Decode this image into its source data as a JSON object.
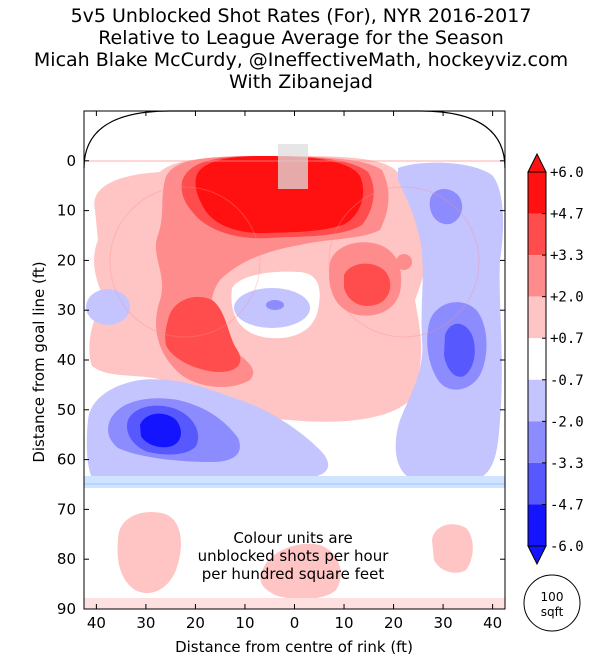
{
  "chart_data": {
    "type": "heatmap",
    "title_lines": [
      "5v5 Unblocked Shot Rates (For), NYR 2016-2017",
      "Relative to League Average for the Season",
      "Micah Blake McCurdy, @IneffectiveMath, hockeyviz.com",
      "With Zibanejad"
    ],
    "xlabel": "Distance from centre of rink (ft)",
    "ylabel": "Distance from goal line (ft)",
    "x_ticks": [
      "40",
      "30",
      "20",
      "10",
      "0",
      "10",
      "20",
      "30",
      "40"
    ],
    "y_ticks": [
      "0",
      "10",
      "20",
      "30",
      "40",
      "50",
      "60",
      "70",
      "80",
      "90"
    ],
    "xlim": [
      -42.5,
      42.5
    ],
    "ylim": [
      90,
      -10
    ],
    "colorbar": {
      "labels": [
        "+6.0",
        "+4.7",
        "+3.3",
        "+2.0",
        "+0.7",
        "-0.7",
        "-2.0",
        "-3.3",
        "-4.7",
        "-6.0"
      ],
      "colors": [
        "#ff1111",
        "#ff4c4c",
        "#ff8c8c",
        "#ffc4c4",
        "#ffffff",
        "#c4c4ff",
        "#8c8cff",
        "#5858ff",
        "#1414ff"
      ]
    },
    "annotation_lines": [
      "Colour units are",
      "unblocked shots per hour",
      "per hundred square feet"
    ],
    "scale_circle_lines": [
      "100",
      "sqft"
    ],
    "regions": [
      {
        "level": 1,
        "x": [
          -35,
          35
        ],
        "y": [
          -2,
          63
        ],
        "shape": "pink-background"
      },
      {
        "level": -2,
        "x": [
          -42,
          -5
        ],
        "y": [
          45,
          63
        ],
        "shape": "blue-bottom-left"
      },
      {
        "level": -4,
        "x": [
          -34,
          -18
        ],
        "y": [
          49,
          59
        ],
        "shape": "deep-blue"
      },
      {
        "level": -2,
        "x": [
          22,
          42
        ],
        "y": [
          0,
          63
        ],
        "shape": "blue-right"
      },
      {
        "level": -3,
        "x": [
          26,
          40
        ],
        "y": [
          29,
          44
        ],
        "shape": "blue-right-mid"
      },
      {
        "level": 5,
        "x": [
          -22,
          22
        ],
        "y": [
          0,
          18
        ],
        "shape": "red-slot"
      },
      {
        "level": 3,
        "x": [
          -25,
          -9
        ],
        "y": [
          28,
          44
        ],
        "shape": "red-left"
      },
      {
        "level": 3,
        "x": [
          17,
          30
        ],
        "y": [
          21,
          30
        ],
        "shape": "red-right"
      }
    ]
  }
}
